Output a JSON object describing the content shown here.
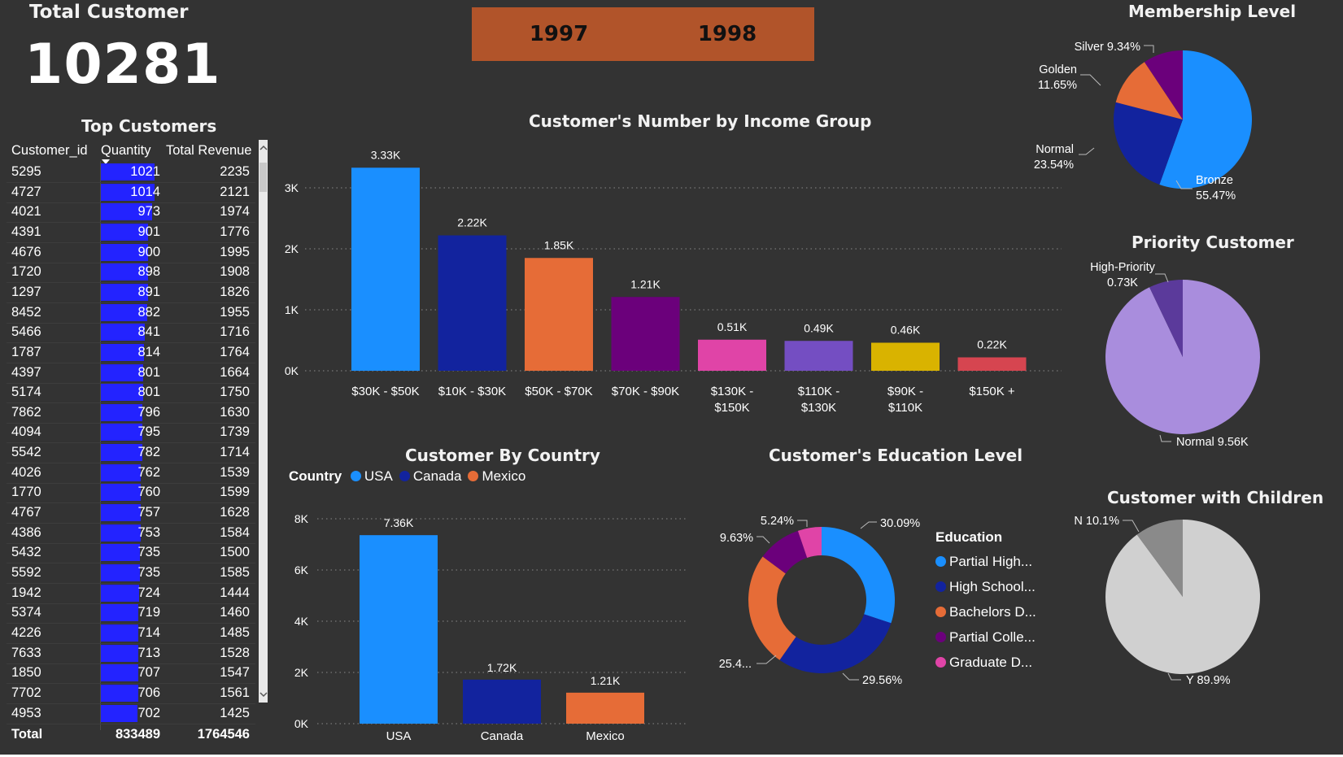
{
  "kpi": {
    "label": "Total Customer",
    "value": "10281"
  },
  "years": [
    "1997",
    "1998"
  ],
  "colors": {
    "background": "#333333",
    "year_button": "#b1542a",
    "bar_blue": "#1a8fff",
    "navy": "#12239e",
    "orange": "#e66c37",
    "purple": "#6b007b",
    "pink": "#e044a7",
    "violet": "#744ec2",
    "gold": "#d9b300",
    "red": "#d64550",
    "quantity_bar": "#2323ff"
  },
  "top_customers": {
    "title": "Top Customers",
    "columns": [
      "Customer_id",
      "Quantity",
      "Total Revenue"
    ],
    "rows": [
      [
        "5295",
        "1021",
        "2235"
      ],
      [
        "4727",
        "1014",
        "2121"
      ],
      [
        "4021",
        "973",
        "1974"
      ],
      [
        "4391",
        "901",
        "1776"
      ],
      [
        "4676",
        "900",
        "1995"
      ],
      [
        "1720",
        "898",
        "1908"
      ],
      [
        "1297",
        "891",
        "1826"
      ],
      [
        "8452",
        "882",
        "1955"
      ],
      [
        "5466",
        "841",
        "1716"
      ],
      [
        "1787",
        "814",
        "1764"
      ],
      [
        "4397",
        "801",
        "1664"
      ],
      [
        "5174",
        "801",
        "1750"
      ],
      [
        "7862",
        "796",
        "1630"
      ],
      [
        "4094",
        "795",
        "1739"
      ],
      [
        "5542",
        "782",
        "1714"
      ],
      [
        "4026",
        "762",
        "1539"
      ],
      [
        "1770",
        "760",
        "1599"
      ],
      [
        "4767",
        "757",
        "1628"
      ],
      [
        "4386",
        "753",
        "1584"
      ],
      [
        "5432",
        "735",
        "1500"
      ],
      [
        "5592",
        "735",
        "1585"
      ],
      [
        "1942",
        "724",
        "1444"
      ],
      [
        "5374",
        "719",
        "1460"
      ],
      [
        "4226",
        "714",
        "1485"
      ],
      [
        "7633",
        "713",
        "1528"
      ],
      [
        "1850",
        "707",
        "1547"
      ],
      [
        "7702",
        "706",
        "1561"
      ],
      [
        "4953",
        "702",
        "1425"
      ]
    ],
    "total_label": "Total",
    "total_quantity": "833489",
    "total_revenue": "1764546"
  },
  "chart_data": [
    {
      "id": "income",
      "type": "bar",
      "title": "Customer's Number by Income Group",
      "categories": [
        "$30K - $50K",
        "$10K - $30K",
        "$50K - $70K",
        "$70K - $90K",
        "$130K - $150K",
        "$110K - $130K",
        "$90K - $110K",
        "$150K +"
      ],
      "values": [
        3330,
        2220,
        1850,
        1210,
        510,
        490,
        460,
        220
      ],
      "data_labels": [
        "3.33K",
        "2.22K",
        "1.85K",
        "1.21K",
        "0.51K",
        "0.49K",
        "0.46K",
        "0.22K"
      ],
      "colors": [
        "#1a8fff",
        "#12239e",
        "#e66c37",
        "#6b007b",
        "#e044a7",
        "#744ec2",
        "#d9b300",
        "#d64550"
      ],
      "yticks": [
        "0K",
        "1K",
        "2K",
        "3K"
      ],
      "ylim": [
        0,
        3330
      ],
      "grid": true
    },
    {
      "id": "country",
      "type": "bar",
      "title": "Customer By Country",
      "legend_title": "Country",
      "categories": [
        "USA",
        "Canada",
        "Mexico"
      ],
      "values": [
        7360,
        1720,
        1210
      ],
      "data_labels": [
        "7.36K",
        "1.72K",
        "1.21K"
      ],
      "colors": [
        "#1a8fff",
        "#12239e",
        "#e66c37"
      ],
      "yticks": [
        "0K",
        "2K",
        "4K",
        "6K",
        "8K"
      ],
      "ylim": [
        0,
        8000
      ],
      "grid": true
    },
    {
      "id": "education",
      "type": "pie",
      "donut": true,
      "title": "Customer's Education Level",
      "legend_title": "Education",
      "categories": [
        "Partial High...",
        "High School...",
        "Bachelors D...",
        "Partial Colle...",
        "Graduate D..."
      ],
      "values": [
        30.09,
        29.56,
        25.4,
        9.63,
        5.24
      ],
      "data_labels": [
        "30.09%",
        "29.56%",
        "25.4...",
        "9.63%",
        "5.24%"
      ],
      "colors": [
        "#1a8fff",
        "#12239e",
        "#e66c37",
        "#6b007b",
        "#e044a7"
      ]
    },
    {
      "id": "membership",
      "type": "pie",
      "title": "Membership Level",
      "categories": [
        "Bronze",
        "Normal",
        "Golden",
        "Silver"
      ],
      "values": [
        55.47,
        23.54,
        11.65,
        9.34
      ],
      "data_labels": [
        [
          "Bronze",
          "55.47%"
        ],
        [
          "Normal",
          "23.54%"
        ],
        [
          "Golden",
          "11.65%"
        ],
        [
          "Silver 9.34%"
        ]
      ],
      "colors": [
        "#1a8fff",
        "#12239e",
        "#e66c37",
        "#6b007b"
      ]
    },
    {
      "id": "priority",
      "type": "pie",
      "title": "Priority Customer",
      "categories": [
        "Normal",
        "High-Priority"
      ],
      "values": [
        9560,
        730
      ],
      "data_labels": [
        [
          "Normal 9.56K"
        ],
        [
          "High-Priority",
          "0.73K"
        ]
      ],
      "colors": [
        "#a98ddd",
        "#5b3a9b"
      ]
    },
    {
      "id": "children",
      "type": "pie",
      "title": "Customer with Children",
      "categories": [
        "Y",
        "N"
      ],
      "values": [
        89.9,
        10.1
      ],
      "data_labels": [
        [
          "Y 89.9%"
        ],
        [
          "N 10.1%"
        ]
      ],
      "colors": [
        "#d0d0d0",
        "#8a8a8a"
      ]
    }
  ]
}
